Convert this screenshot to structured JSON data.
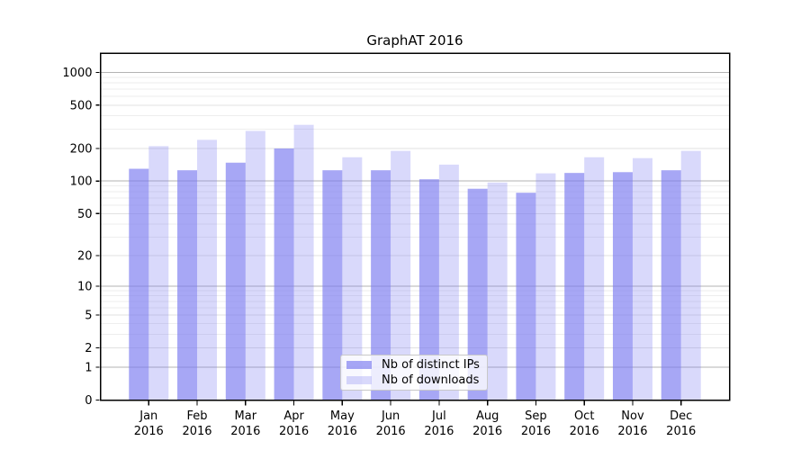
{
  "title": "GraphAT 2016",
  "chart_data": {
    "type": "bar",
    "title": "GraphAT 2016",
    "categories": [
      "Jan",
      "Feb",
      "Mar",
      "Apr",
      "May",
      "Jun",
      "Jul",
      "Aug",
      "Sep",
      "Oct",
      "Nov",
      "Dec"
    ],
    "category_year": "2016",
    "series": [
      {
        "name": "Nb of distinct IPs",
        "color": "rgba(120,120,240,0.65)",
        "values": [
          130,
          126,
          148,
          200,
          126,
          126,
          104,
          85,
          78,
          119,
          121,
          126
        ]
      },
      {
        "name": "Nb of downloads",
        "color": "rgba(120,120,240,0.28)",
        "values": [
          210,
          240,
          290,
          330,
          166,
          190,
          142,
          97,
          118,
          166,
          163,
          190
        ]
      }
    ],
    "yscale": "symlog (log1p)",
    "yticks": [
      0,
      1,
      2,
      5,
      10,
      20,
      50,
      100,
      200,
      500,
      1000
    ],
    "ylim": [
      0,
      1500
    ],
    "xlabel": "",
    "ylabel": "",
    "grid": true,
    "legend_position": "lower center"
  },
  "colors": {
    "bar_base": "#7878f0",
    "grid_major_pow10": "#b3b3b3",
    "grid_major": "#e1e1e1",
    "grid_minor": "#eeeeee",
    "spine": "#000000",
    "text": "#000000",
    "legend_border": "#c8c8c8",
    "background": "#ffffff"
  }
}
